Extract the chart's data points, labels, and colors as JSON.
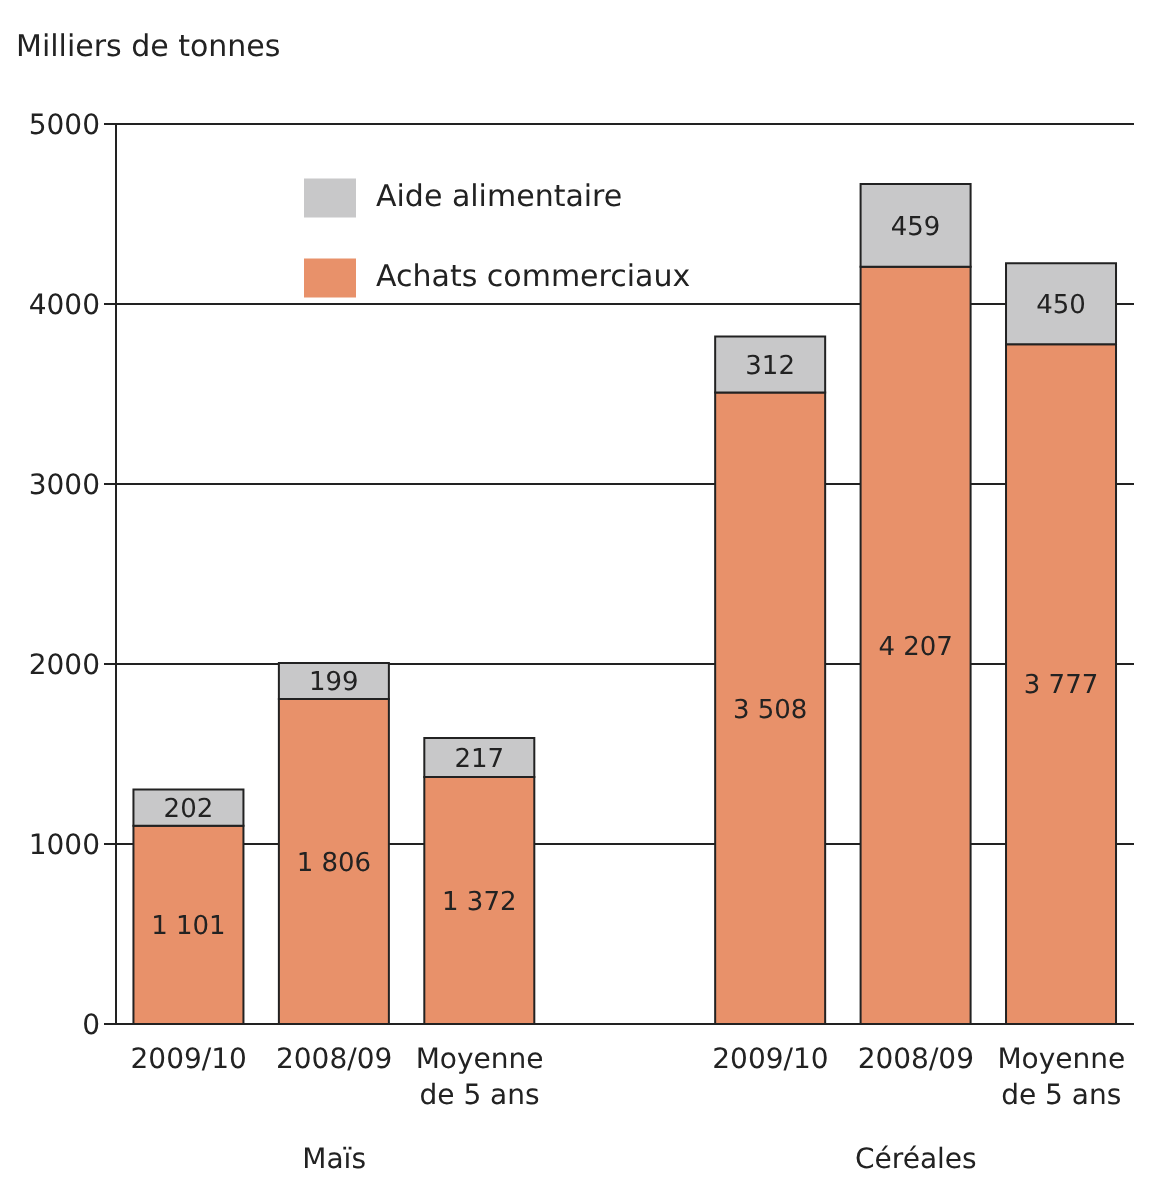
{
  "chart_data": {
    "type": "bar",
    "stacked": true,
    "ylabel": "Milliers de tonnes",
    "categories": [
      "2009/10",
      "2008/09",
      "Moyenne de 5 ans",
      null,
      "2009/10",
      "2008/09",
      "Moyenne de 5 ans"
    ],
    "series": [
      {
        "name": "Achats commerciaux",
        "color": "#e8916a",
        "values": [
          1101,
          1806,
          1372,
          null,
          3508,
          4207,
          3777
        ],
        "value_labels": [
          "1 101",
          "1 806",
          "1 372",
          null,
          "3 508",
          "4 207",
          "3 777"
        ]
      },
      {
        "name": "Aide alimentaire",
        "color": "#c8c8c9",
        "values": [
          202,
          199,
          217,
          null,
          312,
          459,
          450
        ],
        "value_labels": [
          "202",
          "199",
          "217",
          null,
          "312",
          "459",
          "450"
        ]
      }
    ],
    "ylim": [
      0,
      5000
    ],
    "yticks": [
      0,
      1000,
      2000,
      3000,
      4000,
      5000
    ],
    "grid": "y",
    "legend": "top left",
    "annotations": [
      "Maïs",
      "Céréales"
    ]
  }
}
